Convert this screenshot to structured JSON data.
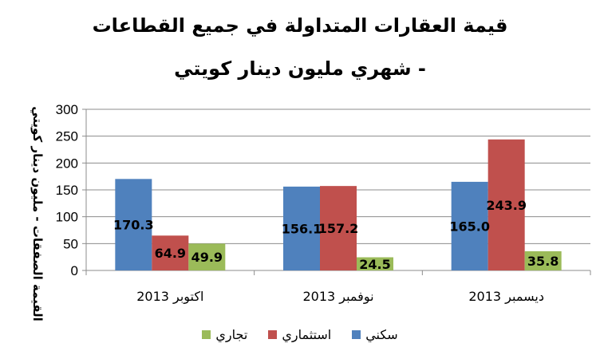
{
  "chart_data": {
    "type": "bar",
    "title_line1": "قيمة العقارات المتداولة في جميع القطاعات",
    "title_line2": "- شهري مليون دينار كويتي",
    "ylabel": "القيمة الصفقات - مليون دينار كويتي",
    "xlabel": "",
    "ylim": [
      0,
      300
    ],
    "yticks": [
      0,
      50,
      100,
      150,
      200,
      250,
      300
    ],
    "grid": true,
    "legend_position": "bottom",
    "categories": [
      "اكتوبر 2013",
      "نوفمبر 2013",
      "ديسمبر 2013"
    ],
    "series": [
      {
        "name": "سكني",
        "color": "#4F81BD",
        "values": [
          170.3,
          156.1,
          165.0
        ],
        "labels": [
          "170.3",
          "156.1",
          "165.0"
        ]
      },
      {
        "name": "استثماري",
        "color": "#C0504D",
        "values": [
          64.9,
          157.2,
          243.9
        ],
        "labels": [
          "64.9",
          "157.2",
          "243.9"
        ]
      },
      {
        "name": "تجاري",
        "color": "#9BBB59",
        "values": [
          49.9,
          24.5,
          35.8
        ],
        "labels": [
          "49.9",
          "24.5",
          "35.8"
        ]
      }
    ]
  }
}
